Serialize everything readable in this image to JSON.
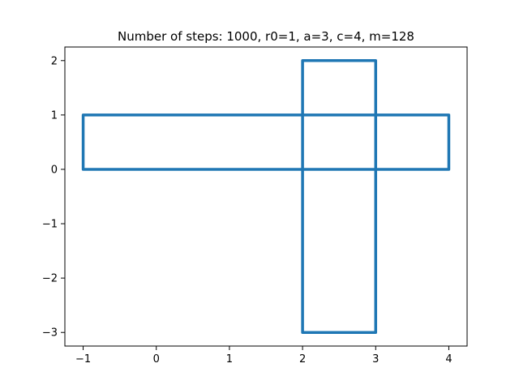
{
  "chart_data": {
    "type": "line",
    "title": "Number of steps: 1000, r0=1, a=3, c=4, m=128",
    "xlabel": "",
    "ylabel": "",
    "xlim": [
      -1.25,
      4.25
    ],
    "ylim": [
      -3.25,
      2.25
    ],
    "x_ticks": [
      -1,
      0,
      1,
      2,
      3,
      4
    ],
    "y_ticks": [
      -3,
      -2,
      -1,
      0,
      1,
      2
    ],
    "x_tick_labels": [
      "−1",
      "0",
      "1",
      "2",
      "3",
      "4"
    ],
    "y_tick_labels": [
      "−3",
      "−2",
      "−1",
      "0",
      "1",
      "2"
    ],
    "grid": false,
    "line_color": "#1f77b4",
    "series": [
      {
        "x": [
          -1,
          4,
          4,
          3,
          3,
          2,
          2,
          3,
          3,
          2,
          2,
          -1,
          -1
        ],
        "y": [
          0,
          0,
          1,
          1,
          2,
          2,
          1,
          1,
          -3,
          -3,
          1,
          1,
          0
        ]
      }
    ]
  }
}
